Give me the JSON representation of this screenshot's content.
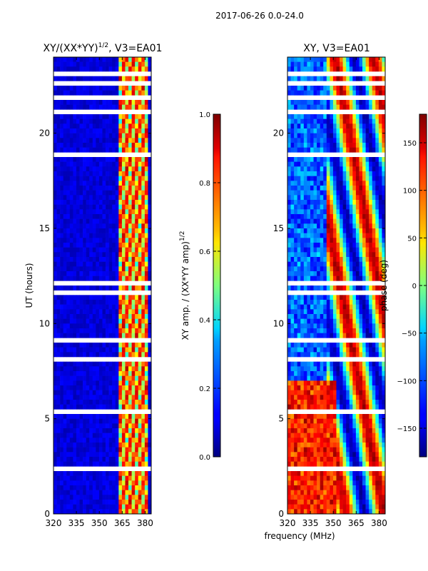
{
  "figure": {
    "suptitle": "2017-06-26 0.0-24.0"
  },
  "chart_data": [
    {
      "type": "heatmap",
      "title": "XY/(XX*YY)",
      "title_superscript": "1/2",
      "title_suffix": ", V3=EA01",
      "xlabel": "",
      "ylabel": "UT (hours)",
      "xlim": [
        320,
        384
      ],
      "ylim": [
        0,
        24
      ],
      "xticks": [
        320,
        335,
        350,
        365,
        380
      ],
      "yticks": [
        0,
        5,
        10,
        15,
        20
      ],
      "colorbar": {
        "label": "XY amp. / (XX*YY amp)",
        "label_superscript": "1/2",
        "range": [
          0.0,
          1.0
        ],
        "ticks": [
          "0.0",
          "0.2",
          "0.4",
          "0.6",
          "0.8",
          "1.0"
        ]
      },
      "colormap": "jet",
      "features": {
        "low_background": 0.05,
        "bright_band_mhz": [
          363,
          382
        ]
      }
    },
    {
      "type": "heatmap",
      "title": "XY, V3=EA01",
      "xlabel": "frequency (MHz)",
      "ylabel": "",
      "xlim": [
        320,
        384
      ],
      "ylim": [
        0,
        24
      ],
      "xticks": [
        320,
        335,
        350,
        365,
        380
      ],
      "yticks": [
        0,
        5,
        10,
        15,
        20
      ],
      "colorbar": {
        "label": "phase (deg)",
        "range": [
          -180,
          180
        ],
        "ticks": [
          "−150",
          "−100",
          "−50",
          "0",
          "50",
          "100",
          "150"
        ]
      },
      "colormap": "jet",
      "features": {
        "fringe_center_mhz": 352
      }
    }
  ]
}
